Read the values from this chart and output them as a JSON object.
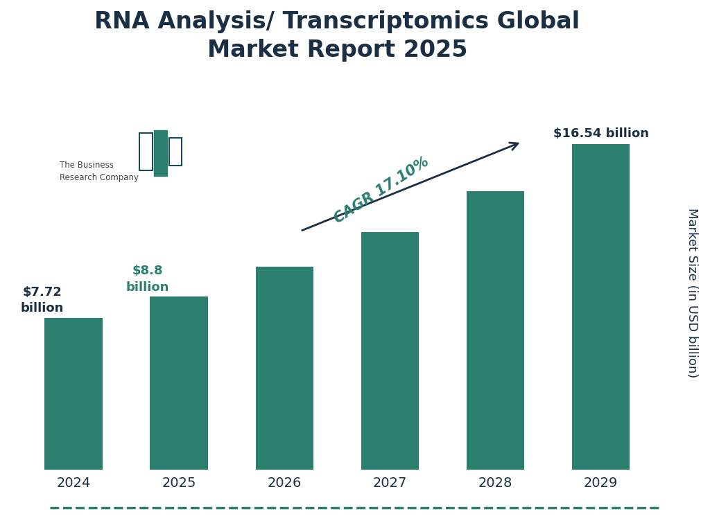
{
  "title": "RNA Analysis/ Transcriptomics Global\nMarket Report 2025",
  "years": [
    "2024",
    "2025",
    "2026",
    "2027",
    "2028",
    "2029"
  ],
  "values": [
    7.72,
    8.8,
    10.32,
    12.08,
    14.15,
    16.54
  ],
  "bar_color": "#2a7f6f",
  "bar_width": 0.55,
  "title_color": "#1a2e44",
  "ylabel": "Market Size (in USD billion)",
  "ylabel_color": "#1a2e44",
  "xlabel_color": "#1a2e44",
  "background_color": "#ffffff",
  "label_2024": "$7.72\nbillion",
  "label_2024_color": "#1a2e44",
  "label_2025": "$8.8\nbillion",
  "label_2025_color": "#2a7f6f",
  "label_2029": "$16.54 billion",
  "label_2029_color": "#1a2e44",
  "cagr_text": "CAGR 17.10%",
  "cagr_color": "#2a7f6f",
  "arrow_color": "#1a2e44",
  "bottom_line_color": "#2a7f6f",
  "ylim": [
    0,
    20
  ],
  "title_fontsize": 24,
  "tick_fontsize": 14,
  "ylabel_fontsize": 13,
  "logo_text_color": "#444444",
  "logo_dark_color": "#1a4a5a",
  "logo_teal_color": "#2a7f6f"
}
